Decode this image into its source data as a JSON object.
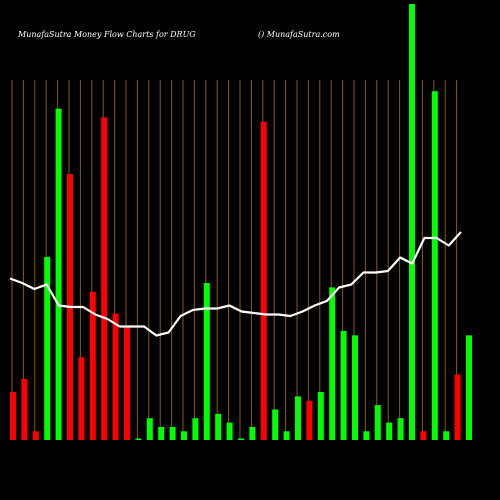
{
  "header": {
    "title": "MunafaSutra  Money Flow  Charts for DRUG",
    "site": "() MunafaSutra.com"
  },
  "colors": {
    "background": "#000000",
    "grid": "#8a5a14",
    "bar_up": "#00ff00",
    "bar_down": "#ff0000",
    "line": "#ffffff"
  },
  "chart_data": {
    "type": "bar",
    "grid": true,
    "y_axis_labels_shown": false,
    "x_tick_labels_legible": false,
    "series": [
      {
        "kind": "bar",
        "values": [
          11,
          14,
          2,
          42,
          76,
          61,
          19,
          34,
          74,
          29,
          26,
          0,
          5,
          3,
          3,
          2,
          5,
          36,
          6,
          4,
          0,
          3,
          73,
          7,
          2,
          10,
          9,
          11,
          35,
          25,
          24,
          2,
          8,
          4,
          5,
          100,
          2,
          80,
          2,
          15,
          24
        ],
        "colors": [
          "down",
          "down",
          "down",
          "up",
          "up",
          "down",
          "down",
          "down",
          "down",
          "down",
          "down",
          "up",
          "up",
          "up",
          "up",
          "up",
          "up",
          "up",
          "up",
          "up",
          "up",
          "up",
          "down",
          "up",
          "up",
          "up",
          "down",
          "up",
          "up",
          "up",
          "up",
          "up",
          "up",
          "up",
          "up",
          "up",
          "down",
          "up",
          "up",
          "down",
          "up"
        ]
      },
      {
        "kind": "line",
        "values": [
          41,
          38,
          34,
          37,
          23,
          22,
          22,
          17,
          14,
          9,
          9,
          9,
          3,
          5,
          16,
          20,
          21,
          21,
          23,
          19,
          18,
          17,
          17,
          16,
          19,
          23,
          26,
          35,
          37,
          45,
          45,
          46,
          55,
          51,
          68,
          68,
          63,
          72
        ]
      }
    ]
  }
}
